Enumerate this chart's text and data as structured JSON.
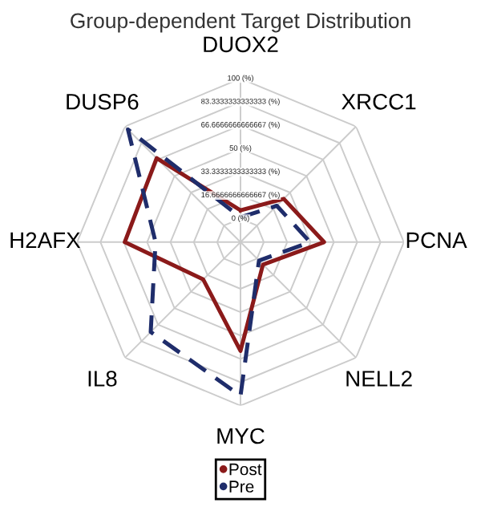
{
  "chart_data": {
    "type": "radar",
    "title": "Group-dependent Target Distribution",
    "categories": [
      "DUOX2",
      "XRCC1",
      "PCNA",
      "NELL2",
      "MYC",
      "IL8",
      "H2AFX",
      "DUSP6"
    ],
    "series": [
      {
        "name": "Post",
        "color": "#8b1a1a",
        "line_style": "solid",
        "values": [
          6,
          27,
          43,
          6,
          61,
          21,
          66,
          68
        ]
      },
      {
        "name": "Pre",
        "color": "#1f2d6b",
        "line_style": "dashed",
        "values": [
          1,
          20,
          33,
          2,
          93,
          74,
          44,
          97
        ]
      }
    ],
    "ylim": [
      -16.6666666666667,
      100
    ],
    "yticks": [
      {
        "value": 0,
        "label": "0 (%)"
      },
      {
        "value": 16.6666666666667,
        "label": "16.6666666666667 (%)"
      },
      {
        "value": 33.3333333333333,
        "label": "33.3333333333333 (%)"
      },
      {
        "value": 50,
        "label": "50 (%)"
      },
      {
        "value": 66.6666666666667,
        "label": "66.6666666666667 (%)"
      },
      {
        "value": 83.3333333333333,
        "label": "83.3333333333333 (%)"
      },
      {
        "value": 100,
        "label": "100 (%)"
      }
    ],
    "grid": true,
    "legend": "bottom",
    "marker": "none"
  }
}
